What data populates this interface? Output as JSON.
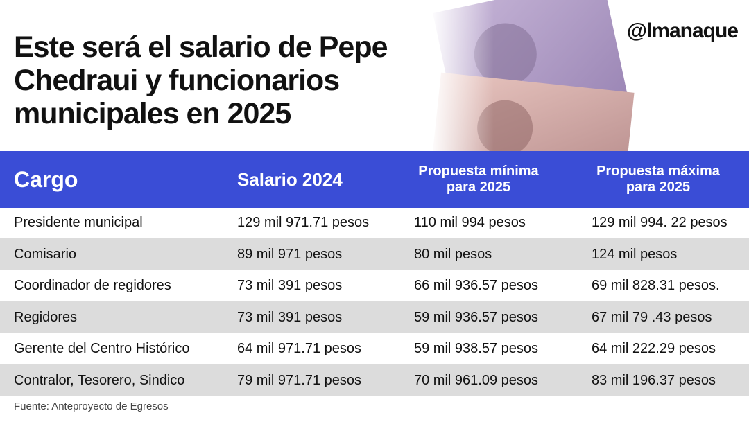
{
  "header": {
    "title": "Este será el salario de Pepe Chedraui y funcionarios municipales en 2025",
    "brand": "@lmanaque"
  },
  "table": {
    "columns": [
      "Cargo",
      "Salario 2024",
      "Propuesta mínima para 2025",
      "Propuesta máxima para 2025"
    ],
    "rows": [
      [
        "Presidente municipal",
        "129 mil 971.71 pesos",
        "110 mil 994 pesos",
        "129 mil 994. 22 pesos"
      ],
      [
        "Comisario",
        "89 mil 971 pesos",
        "80 mil pesos",
        "124 mil pesos"
      ],
      [
        "Coordinador de regidores",
        "73 mil 391 pesos",
        "66 mil 936.57 pesos",
        "69 mil 828.31 pesos."
      ],
      [
        "Regidores",
        "73 mil 391 pesos",
        "59 mil 936.57 pesos",
        "67 mil 79 .43 pesos"
      ],
      [
        "Gerente del Centro Histórico",
        "64 mil 971.71 pesos",
        "59 mil 938.57 pesos",
        "64 mil 222.29 pesos"
      ],
      [
        "Contralor, Tesorero, Sindico",
        "79 mil 971.71 pesos",
        "70 mil 961.09 pesos",
        "83 mil 196.37 pesos"
      ]
    ]
  },
  "footer": {
    "source": "Fuente: Anteproyecto de Egresos"
  }
}
